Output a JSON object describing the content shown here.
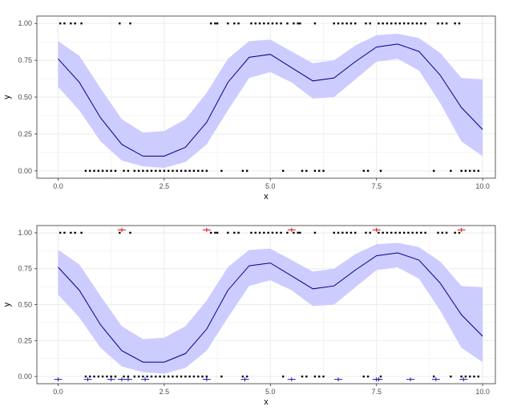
{
  "chart_data": [
    {
      "type": "line",
      "xlabel": "x",
      "ylabel": "y",
      "xlim": [
        -0.5,
        10.3
      ],
      "ylim": [
        -0.05,
        1.05
      ],
      "x_ticks": [
        0,
        2.5,
        5,
        7.5,
        10
      ],
      "x_tick_labels": [
        "0.0",
        "2.5",
        "5.0",
        "7.5",
        "10.0"
      ],
      "y_ticks": [
        0,
        0.25,
        0.5,
        0.75,
        1
      ],
      "y_tick_labels": [
        "0.00",
        "0.25",
        "0.50",
        "0.75",
        "1.00"
      ],
      "grid": true,
      "series": [
        {
          "role": "fit",
          "x": [
            0,
            0.5,
            1,
            1.5,
            2,
            2.5,
            3,
            3.5,
            4,
            4.5,
            5,
            5.5,
            6,
            6.5,
            7,
            7.5,
            8,
            8.5,
            9,
            9.5,
            10
          ],
          "y": [
            0.76,
            0.6,
            0.36,
            0.18,
            0.1,
            0.1,
            0.16,
            0.33,
            0.6,
            0.77,
            0.79,
            0.7,
            0.61,
            0.63,
            0.74,
            0.84,
            0.86,
            0.81,
            0.65,
            0.43,
            0.28
          ],
          "lower": [
            0.57,
            0.41,
            0.2,
            0.07,
            0.03,
            0.02,
            0.06,
            0.18,
            0.41,
            0.63,
            0.67,
            0.6,
            0.49,
            0.5,
            0.62,
            0.74,
            0.76,
            0.68,
            0.46,
            0.2,
            0.1
          ],
          "upper": [
            0.88,
            0.78,
            0.56,
            0.35,
            0.26,
            0.27,
            0.35,
            0.53,
            0.76,
            0.88,
            0.89,
            0.81,
            0.73,
            0.75,
            0.85,
            0.92,
            0.93,
            0.9,
            0.8,
            0.63,
            0.62
          ]
        },
        {
          "role": "points",
          "y_value": 1,
          "x": [
            0.05,
            0.15,
            0.3,
            0.4,
            0.55,
            1.45,
            1.7,
            3.6,
            3.7,
            3.75,
            4.0,
            4.15,
            4.25,
            4.55,
            4.65,
            4.75,
            4.85,
            4.95,
            5.05,
            5.15,
            5.25,
            5.4,
            5.55,
            5.65,
            5.7,
            6.05,
            6.5,
            6.6,
            6.7,
            6.8,
            6.9,
            7.0,
            7.25,
            7.35,
            7.55,
            7.65,
            7.75,
            7.85,
            7.95,
            8.05,
            8.15,
            8.25,
            8.35,
            8.45,
            8.55,
            8.65,
            8.95,
            9.05,
            9.15,
            9.35,
            9.45
          ]
        },
        {
          "role": "points",
          "y_value": 0,
          "x": [
            0.65,
            0.75,
            0.85,
            0.95,
            1.05,
            1.15,
            1.25,
            1.35,
            1.55,
            1.65,
            1.8,
            1.9,
            2.0,
            2.1,
            2.2,
            2.3,
            2.4,
            2.5,
            2.6,
            2.7,
            2.8,
            2.9,
            3.0,
            3.1,
            3.2,
            3.3,
            3.4,
            3.5,
            3.85,
            4.35,
            4.45,
            5.3,
            5.75,
            5.85,
            6.05,
            6.15,
            6.25,
            7.2,
            7.3,
            7.6,
            8.85,
            9.25,
            9.5,
            9.6,
            9.7,
            9.8,
            9.9
          ]
        }
      ]
    },
    {
      "type": "line",
      "xlabel": "x",
      "ylabel": "y",
      "xlim": [
        -0.5,
        10.3
      ],
      "ylim": [
        -0.05,
        1.05
      ],
      "x_ticks": [
        0,
        2.5,
        5,
        7.5,
        10
      ],
      "x_tick_labels": [
        "0.0",
        "2.5",
        "5.0",
        "7.5",
        "10.0"
      ],
      "y_ticks": [
        0,
        0.25,
        0.5,
        0.75,
        1
      ],
      "y_tick_labels": [
        "0.00",
        "0.25",
        "0.50",
        "0.75",
        "1.00"
      ],
      "grid": true,
      "series": [
        {
          "role": "fit",
          "x": [
            0,
            0.5,
            1,
            1.5,
            2,
            2.5,
            3,
            3.5,
            4,
            4.5,
            5,
            5.5,
            6,
            6.5,
            7,
            7.5,
            8,
            8.5,
            9,
            9.5,
            10
          ],
          "y": [
            0.76,
            0.6,
            0.36,
            0.18,
            0.1,
            0.1,
            0.16,
            0.33,
            0.6,
            0.77,
            0.79,
            0.7,
            0.61,
            0.63,
            0.74,
            0.84,
            0.86,
            0.81,
            0.65,
            0.43,
            0.28
          ],
          "lower": [
            0.57,
            0.41,
            0.2,
            0.07,
            0.03,
            0.02,
            0.06,
            0.18,
            0.41,
            0.63,
            0.67,
            0.6,
            0.49,
            0.5,
            0.62,
            0.74,
            0.76,
            0.68,
            0.46,
            0.2,
            0.1
          ],
          "upper": [
            0.88,
            0.78,
            0.56,
            0.35,
            0.26,
            0.27,
            0.35,
            0.53,
            0.76,
            0.88,
            0.89,
            0.81,
            0.73,
            0.75,
            0.85,
            0.92,
            0.93,
            0.9,
            0.8,
            0.63,
            0.62
          ]
        },
        {
          "role": "points",
          "y_value": 1,
          "x": [
            0.05,
            0.15,
            0.3,
            0.4,
            0.55,
            1.45,
            1.7,
            3.6,
            3.7,
            3.75,
            4.0,
            4.15,
            4.25,
            4.55,
            4.65,
            4.75,
            4.85,
            4.95,
            5.05,
            5.15,
            5.25,
            5.4,
            5.55,
            5.65,
            5.7,
            6.05,
            6.5,
            6.6,
            6.7,
            6.8,
            6.9,
            7.0,
            7.25,
            7.35,
            7.55,
            7.65,
            7.75,
            7.85,
            7.95,
            8.05,
            8.15,
            8.25,
            8.35,
            8.45,
            8.55,
            8.65,
            8.95,
            9.05,
            9.15,
            9.35,
            9.45
          ]
        },
        {
          "role": "points",
          "y_value": 0,
          "x": [
            0.65,
            0.75,
            0.85,
            0.95,
            1.05,
            1.15,
            1.25,
            1.35,
            1.55,
            1.65,
            1.8,
            1.9,
            2.0,
            2.1,
            2.2,
            2.3,
            2.4,
            2.5,
            2.6,
            2.7,
            2.8,
            2.9,
            3.0,
            3.1,
            3.2,
            3.3,
            3.4,
            3.5,
            3.85,
            4.35,
            4.45,
            5.3,
            5.75,
            5.85,
            6.05,
            6.15,
            6.25,
            7.2,
            7.3,
            7.6,
            8.85,
            9.25,
            9.5,
            9.6,
            9.7,
            9.8,
            9.9
          ]
        },
        {
          "role": "markers",
          "y_value": 1.02,
          "color": "#e8000b",
          "x": [
            1.5,
            3.5,
            5.5,
            7.5,
            9.5
          ]
        },
        {
          "role": "markers",
          "y_value": -0.02,
          "color": "#1a1aa6",
          "x": [
            0.0,
            0.7,
            1.25,
            1.5,
            1.65,
            2.05,
            3.5,
            4.4,
            5.5,
            6.6,
            7.5,
            7.55,
            8.3,
            8.9,
            9.55
          ]
        }
      ]
    }
  ],
  "colors": {
    "line": "#00008b",
    "band": "#c9c9ff",
    "points": "#000000",
    "grid": "#ebebeb",
    "frame": "#333333",
    "marker_top": "#e8000b",
    "marker_bottom": "#1a1aa6"
  }
}
